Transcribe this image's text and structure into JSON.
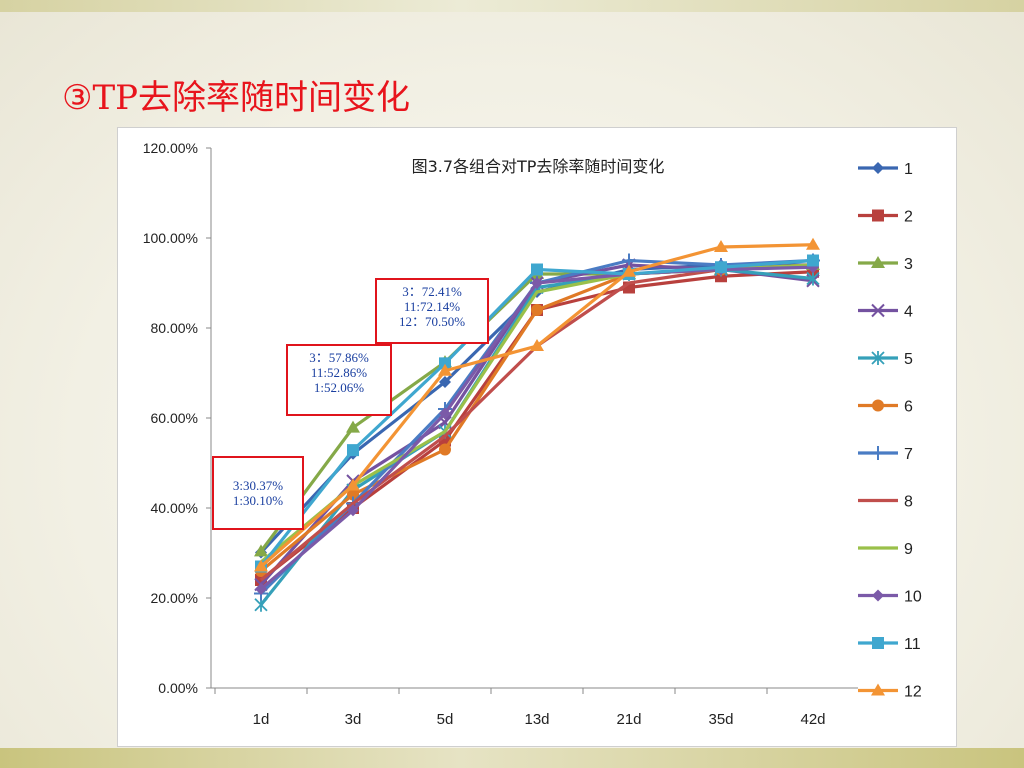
{
  "slide": {
    "title": "③TP去除率随时间变化"
  },
  "callouts": [
    {
      "lines": [
        "3:30.37%",
        "1:30.10%"
      ]
    },
    {
      "lines": [
        "3：57.86%",
        "11:52.86%",
        "1:52.06%"
      ]
    },
    {
      "lines": [
        "3：72.41%",
        "11:72.14%",
        "12：70.50%"
      ]
    }
  ],
  "chart_data": {
    "type": "line",
    "title": "图3.7各组合对TP去除率随时间变化",
    "categories": [
      "1d",
      "3d",
      "5d",
      "13d",
      "21d",
      "35d",
      "42d"
    ],
    "ylim": [
      0,
      120
    ],
    "yticks": [
      "0.00%",
      "20.00%",
      "40.00%",
      "60.00%",
      "80.00%",
      "100.00%",
      "120.00%"
    ],
    "grid": false,
    "legend_position": "right",
    "series": [
      {
        "name": "1",
        "color": "#3a67b1",
        "marker": "diamond",
        "values": [
          30.1,
          52.06,
          68,
          88,
          93,
          94,
          94
        ]
      },
      {
        "name": "2",
        "color": "#b8403d",
        "marker": "square",
        "values": [
          24,
          40,
          55,
          84,
          89,
          91.5,
          92.5
        ]
      },
      {
        "name": "3",
        "color": "#85a948",
        "marker": "triangle",
        "values": [
          30.37,
          57.86,
          72.41,
          92,
          92,
          93,
          94
        ]
      },
      {
        "name": "4",
        "color": "#7452a0",
        "marker": "x",
        "values": [
          23,
          46,
          59,
          90,
          94,
          93,
          90.5
        ]
      },
      {
        "name": "5",
        "color": "#35a0b9",
        "marker": "star",
        "values": [
          18.5,
          44,
          57,
          89,
          92,
          93,
          91
        ]
      },
      {
        "name": "6",
        "color": "#e07a26",
        "marker": "circle",
        "values": [
          26,
          43,
          53,
          84,
          92,
          93,
          94
        ]
      },
      {
        "name": "7",
        "color": "#4a7cc4",
        "marker": "plus",
        "values": [
          21,
          41,
          62,
          90,
          95,
          94,
          95
        ]
      },
      {
        "name": "8",
        "color": "#c04e4c",
        "marker": "none",
        "values": [
          24,
          41,
          56,
          76,
          90,
          93,
          94
        ]
      },
      {
        "name": "9",
        "color": "#9ac04a",
        "marker": "none",
        "values": [
          28,
          45,
          57,
          88,
          92,
          93,
          94
        ]
      },
      {
        "name": "10",
        "color": "#7b5aa8",
        "marker": "diamond",
        "values": [
          22,
          39.5,
          61,
          90,
          92,
          93,
          93.5
        ]
      },
      {
        "name": "11",
        "color": "#3fa7cf",
        "marker": "square",
        "values": [
          27,
          52.86,
          72.14,
          93,
          92,
          93.5,
          95
        ]
      },
      {
        "name": "12",
        "color": "#f39434",
        "marker": "triangle",
        "values": [
          27,
          45,
          70.5,
          76,
          92.5,
          98,
          98.5
        ]
      }
    ]
  }
}
